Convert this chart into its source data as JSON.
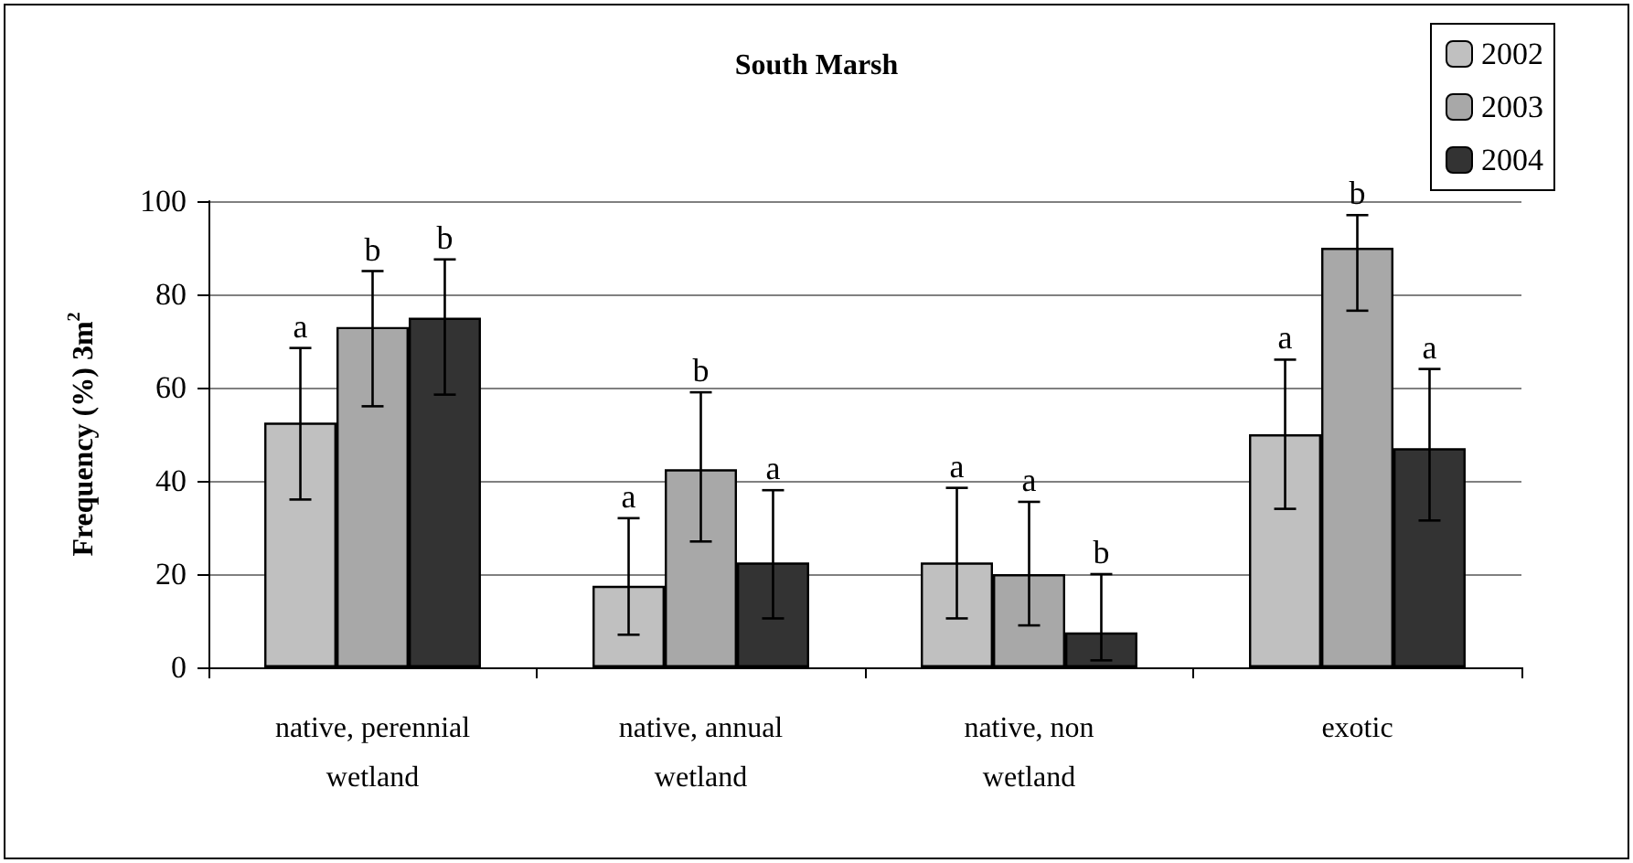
{
  "chart_data": {
    "type": "bar",
    "title": "South Marsh",
    "ylabel": "Frequency (%) 3m$^{2}$",
    "categories": [
      "native, perennial\nwetland",
      "native, annual\nwetland",
      "native, non\nwetland",
      "exotic"
    ],
    "series": [
      {
        "name": "2002",
        "color": "#c0c0c0",
        "values": [
          52.5,
          17.5,
          22.5,
          50
        ],
        "errors": [
          [
            36,
            68.5
          ],
          [
            7,
            32
          ],
          [
            10.5,
            38.5
          ],
          [
            34,
            66
          ]
        ],
        "value_labels": [
          "a",
          "a",
          "a",
          "a"
        ]
      },
      {
        "name": "2003",
        "color": "#a8a8a8",
        "values": [
          73,
          42.5,
          20,
          90
        ],
        "errors": [
          [
            56,
            85
          ],
          [
            27,
            59
          ],
          [
            9,
            35.5
          ],
          [
            76.5,
            97
          ]
        ],
        "value_labels": [
          "b",
          "b",
          "a",
          "b"
        ]
      },
      {
        "name": "2004",
        "color": "#333333",
        "values": [
          75,
          22.5,
          7.5,
          47
        ],
        "errors": [
          [
            58.5,
            87.5
          ],
          [
            10.5,
            38
          ],
          [
            1.5,
            20
          ],
          [
            31.5,
            64
          ]
        ],
        "value_labels": [
          "b",
          "a",
          "b",
          "a"
        ]
      }
    ],
    "ylim": [
      0,
      100
    ],
    "yticks": [
      0,
      20,
      40,
      60,
      80,
      100
    ],
    "grid": "y",
    "legend": "top right"
  }
}
